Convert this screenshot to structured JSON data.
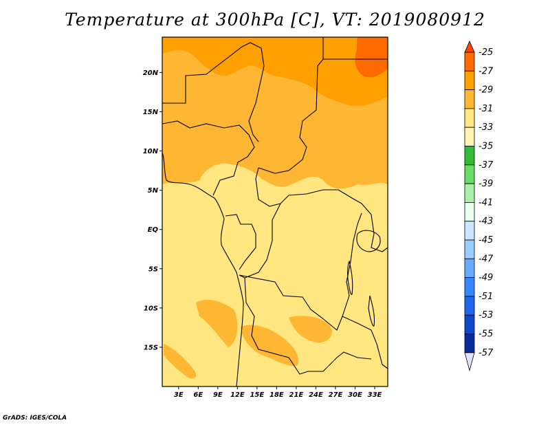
{
  "title": "Temperature at 300hPa [C], VT: 2019080912",
  "credit": "GrADS: IGES/COLA",
  "map": {
    "lat_labels": [
      "20N",
      "15N",
      "10N",
      "5N",
      "EQ",
      "5S",
      "10S",
      "15S"
    ],
    "lon_labels": [
      "3E",
      "6E",
      "9E",
      "12E",
      "15E",
      "18E",
      "21E",
      "24E",
      "27E",
      "30E",
      "33E"
    ],
    "lon_range": [
      0.5,
      35
    ],
    "lat_range": [
      -20,
      24.5
    ],
    "background_color": "#ffe680"
  },
  "colorbar": {
    "labels": [
      "-25",
      "-27",
      "-29",
      "-31",
      "-33",
      "-35",
      "-37",
      "-39",
      "-41",
      "-43",
      "-45",
      "-47",
      "-49",
      "-51",
      "-53",
      "-55",
      "-57"
    ],
    "colors": [
      "#ff4500",
      "#ff6a00",
      "#ffa000",
      "#ffb733",
      "#ffe680",
      "#fff5b0",
      "#33bb33",
      "#66dd66",
      "#aaeeaa",
      "#e8fff0",
      "#cce6ff",
      "#99ccff",
      "#66aaff",
      "#3388ff",
      "#1f66ee",
      "#0f47cc",
      "#0a2a99",
      "#001166"
    ],
    "top_color": "#ff4500",
    "bottom_color": "#e0e0ff"
  }
}
